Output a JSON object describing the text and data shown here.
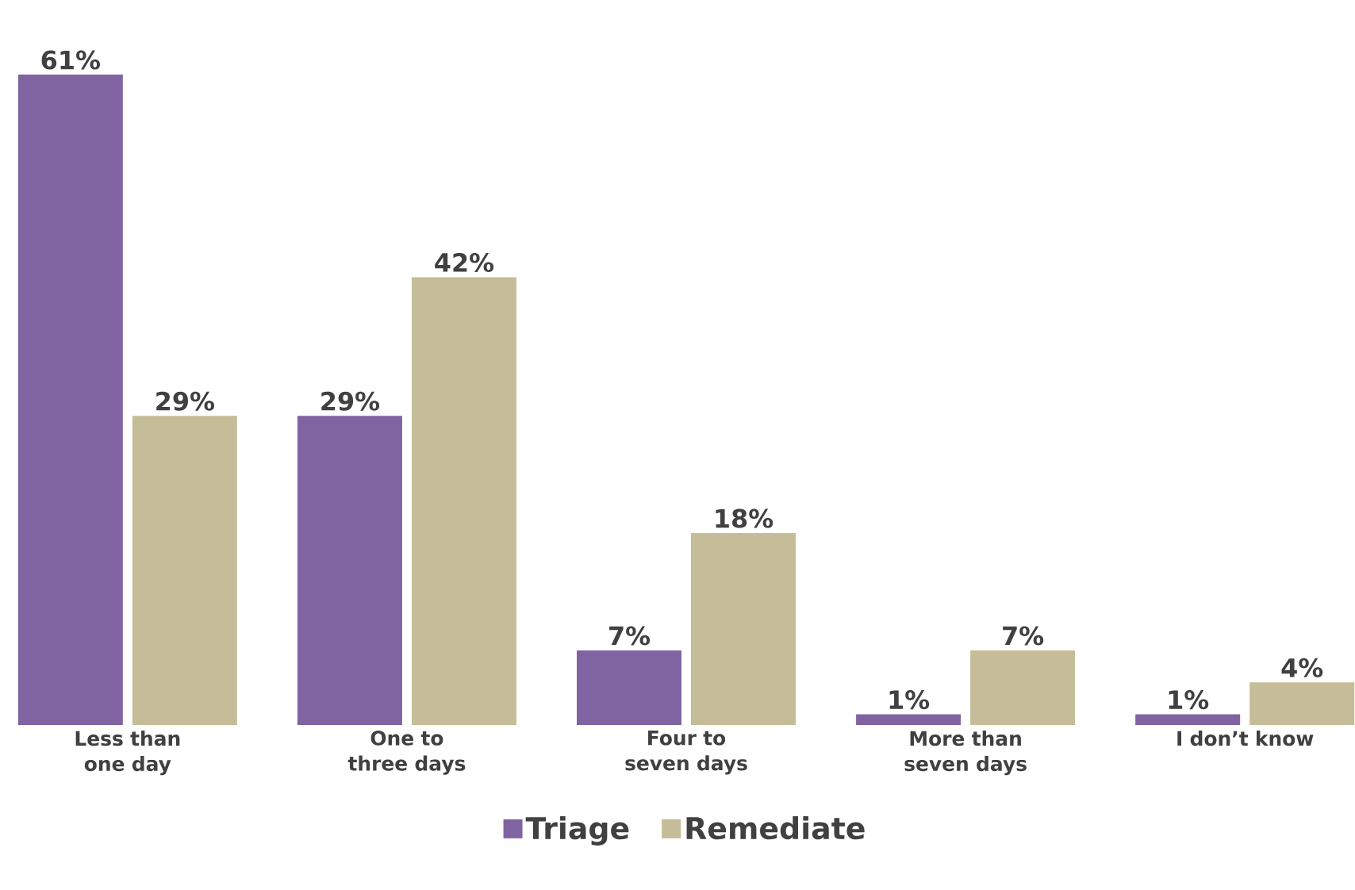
{
  "chart_data": {
    "type": "bar",
    "categories": [
      "Less than one day",
      "One to three days",
      "Four to seven days",
      "More than seven days",
      "I don’t know"
    ],
    "series": [
      {
        "name": "Triage",
        "color": "#8064a2",
        "values": [
          61,
          29,
          7,
          1,
          1
        ],
        "value_labels": [
          "61%",
          "29%",
          "7%",
          "1%",
          "1%"
        ]
      },
      {
        "name": "Remediate",
        "color": "#c4bd97",
        "values": [
          29,
          42,
          18,
          7,
          4
        ],
        "value_labels": [
          "29%",
          "42%",
          "18%",
          "7%",
          "4%"
        ]
      }
    ],
    "legend": "bottom"
  }
}
